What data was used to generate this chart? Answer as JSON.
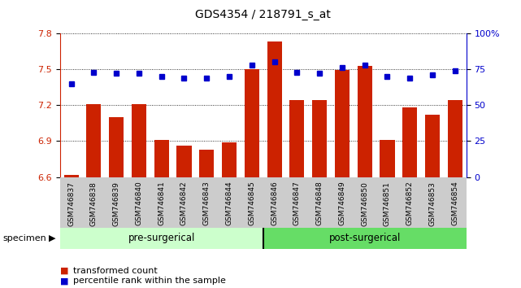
{
  "title": "GDS4354 / 218791_s_at",
  "samples": [
    "GSM746837",
    "GSM746838",
    "GSM746839",
    "GSM746840",
    "GSM746841",
    "GSM746842",
    "GSM746843",
    "GSM746844",
    "GSM746845",
    "GSM746846",
    "GSM746847",
    "GSM746848",
    "GSM746849",
    "GSM746850",
    "GSM746851",
    "GSM746852",
    "GSM746853",
    "GSM746854"
  ],
  "bar_values": [
    6.62,
    7.21,
    7.1,
    7.21,
    6.91,
    6.86,
    6.83,
    6.89,
    7.5,
    7.73,
    7.24,
    7.24,
    7.49,
    7.53,
    6.91,
    7.18,
    7.12,
    7.24
  ],
  "percentile_values": [
    65,
    73,
    72,
    72,
    70,
    69,
    69,
    70,
    78,
    80,
    73,
    72,
    76,
    78,
    70,
    69,
    71,
    74
  ],
  "bar_color": "#cc2200",
  "dot_color": "#0000cc",
  "ylim_left": [
    6.6,
    7.8
  ],
  "ylim_right": [
    0,
    100
  ],
  "yticks_left": [
    6.6,
    6.9,
    7.2,
    7.5,
    7.8
  ],
  "yticks_right": [
    0,
    25,
    50,
    75,
    100
  ],
  "ytick_labels_right": [
    "0",
    "25",
    "50",
    "75",
    "100%"
  ],
  "pre_surgical_count": 9,
  "pre_surgical_label": "pre-surgerical",
  "post_surgical_label": "post-surgerical",
  "pre_color": "#ccffcc",
  "post_color": "#66dd66",
  "specimen_label": "specimen",
  "legend_bar_label": "transformed count",
  "legend_dot_label": "percentile rank within the sample",
  "bg_color": "#ffffff",
  "ticklabel_bg": "#cccccc",
  "tick_fontsize": 8,
  "label_fontsize": 8,
  "title_fontsize": 10
}
